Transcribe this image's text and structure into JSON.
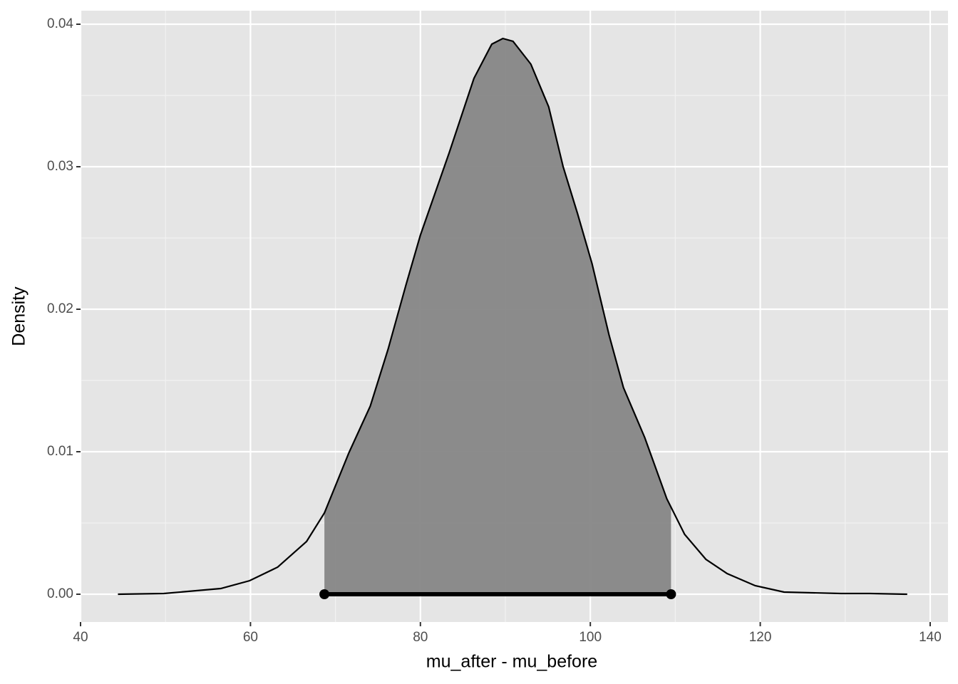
{
  "chart_data": {
    "type": "density",
    "xlabel": "mu_after - mu_before",
    "ylabel": "Density",
    "x": [
      44.4,
      49.8,
      56.5,
      59.9,
      63.2,
      66.6,
      68.7,
      71.6,
      74.1,
      76.2,
      78.3,
      80.0,
      83.4,
      86.3,
      88.4,
      89.7,
      90.9,
      93.0,
      95.1,
      96.8,
      98.5,
      100.2,
      102.2,
      103.9,
      106.4,
      109.0,
      111.1,
      113.6,
      116.1,
      119.4,
      122.8,
      129.5,
      132.9,
      137.3
    ],
    "values": [
      0,
      5e-05,
      0.0004,
      0.00095,
      0.0019,
      0.0037,
      0.0057,
      0.00995,
      0.0132,
      0.0172,
      0.0217,
      0.0252,
      0.031,
      0.0362,
      0.0386,
      0.039,
      0.0388,
      0.0372,
      0.0342,
      0.03,
      0.0267,
      0.0232,
      0.0182,
      0.0145,
      0.011,
      0.0067,
      0.0042,
      0.00245,
      0.00145,
      0.0006,
      0.00015,
      5e-05,
      5e-05,
      0
    ],
    "color": "#000000",
    "fill": "#868686",
    "interval": [
      68.7,
      109.5
    ],
    "xlim": [
      40,
      142.1
    ],
    "ylim": [
      -0.00195,
      0.04095
    ],
    "xticks": [
      40,
      60,
      80,
      100,
      120,
      140
    ],
    "yticks": [
      {
        "value": 0,
        "label": "0.00"
      },
      0.01,
      0.02,
      0.03,
      0.04
    ],
    "xminor": [
      50,
      70,
      90,
      110,
      130
    ],
    "yminor": [
      0.005,
      0.015,
      0.025,
      0.035
    ],
    "grid": true
  }
}
